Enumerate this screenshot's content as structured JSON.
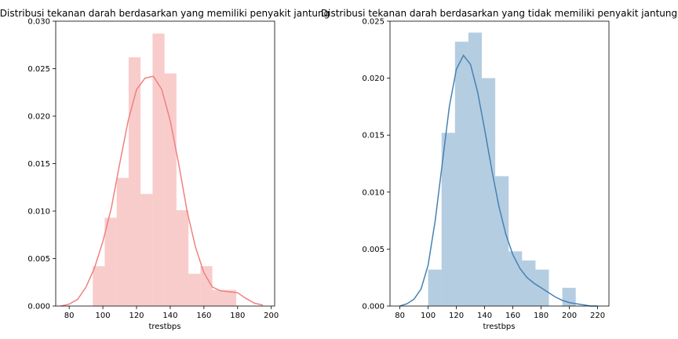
{
  "chart_data": [
    {
      "type": "histogram",
      "title": "Distribusi tekanan darah berdasarkan yang memiliki penyakit jantung",
      "xlabel": "trestbps",
      "ylabel": "",
      "xlim": [
        72,
        202
      ],
      "ylim": [
        0,
        0.03
      ],
      "xticks": [
        "80",
        "100",
        "120",
        "140",
        "160",
        "180",
        "200"
      ],
      "yticks": [
        "0.000",
        "0.005",
        "0.010",
        "0.015",
        "0.020",
        "0.025",
        "0.030"
      ],
      "grid": false,
      "bar_color": "#f08080",
      "kde_color": "#f08080",
      "bin_edges": [
        94,
        101.1,
        108.2,
        115.3,
        122.4,
        129.5,
        136.6,
        143.7,
        150.8,
        157.9,
        165,
        172.1,
        179.2
      ],
      "values": [
        0.0042,
        0.0093,
        0.0135,
        0.0262,
        0.0118,
        0.0287,
        0.0245,
        0.0101,
        0.0034,
        0.0042,
        0.0017,
        0.0017
      ],
      "kde": {
        "x": [
          75,
          80,
          85,
          90,
          95,
          100,
          105,
          110,
          115,
          120,
          125,
          130,
          135,
          140,
          145,
          150,
          155,
          160,
          165,
          170,
          175,
          180,
          185,
          190,
          195
        ],
        "y": [
          0.0,
          0.0002,
          0.0007,
          0.002,
          0.004,
          0.0068,
          0.0103,
          0.015,
          0.0195,
          0.0228,
          0.024,
          0.0242,
          0.0228,
          0.0195,
          0.015,
          0.01,
          0.0062,
          0.0035,
          0.002,
          0.0016,
          0.0015,
          0.0014,
          0.0008,
          0.0003,
          0.0001
        ]
      }
    },
    {
      "type": "histogram",
      "title": "Distribusi tekanan darah berdasarkan yang tidak memiliki penyakit jantung",
      "xlabel": "trestbps",
      "ylabel": "",
      "xlim": [
        73,
        228
      ],
      "ylim": [
        0,
        0.025
      ],
      "xticks": [
        "80",
        "100",
        "120",
        "140",
        "160",
        "180",
        "200",
        "220"
      ],
      "yticks": [
        "0.000",
        "0.005",
        "0.010",
        "0.015",
        "0.020",
        "0.025"
      ],
      "grid": false,
      "bar_color": "#4682b4",
      "kde_color": "#4682b4",
      "bin_edges": [
        100,
        109.5,
        119,
        128.5,
        138,
        147.5,
        157,
        166.5,
        176,
        185.5,
        195,
        204.5
      ],
      "values": [
        0.0032,
        0.0152,
        0.0232,
        0.024,
        0.02,
        0.0114,
        0.0048,
        0.004,
        0.0032,
        0.0,
        0.0016
      ],
      "kde": {
        "x": [
          80,
          85,
          90,
          95,
          100,
          105,
          110,
          115,
          120,
          125,
          130,
          135,
          140,
          145,
          150,
          155,
          160,
          165,
          170,
          175,
          180,
          185,
          190,
          195,
          200,
          205,
          210,
          215,
          220
        ],
        "y": [
          0.0,
          0.0002,
          0.0006,
          0.0015,
          0.0036,
          0.0075,
          0.0125,
          0.0175,
          0.0208,
          0.022,
          0.0212,
          0.0188,
          0.0155,
          0.012,
          0.0088,
          0.0063,
          0.0045,
          0.0033,
          0.0025,
          0.002,
          0.0016,
          0.0012,
          0.0008,
          0.0005,
          0.0003,
          0.0002,
          0.0001,
          0.0,
          0.0
        ]
      }
    }
  ]
}
